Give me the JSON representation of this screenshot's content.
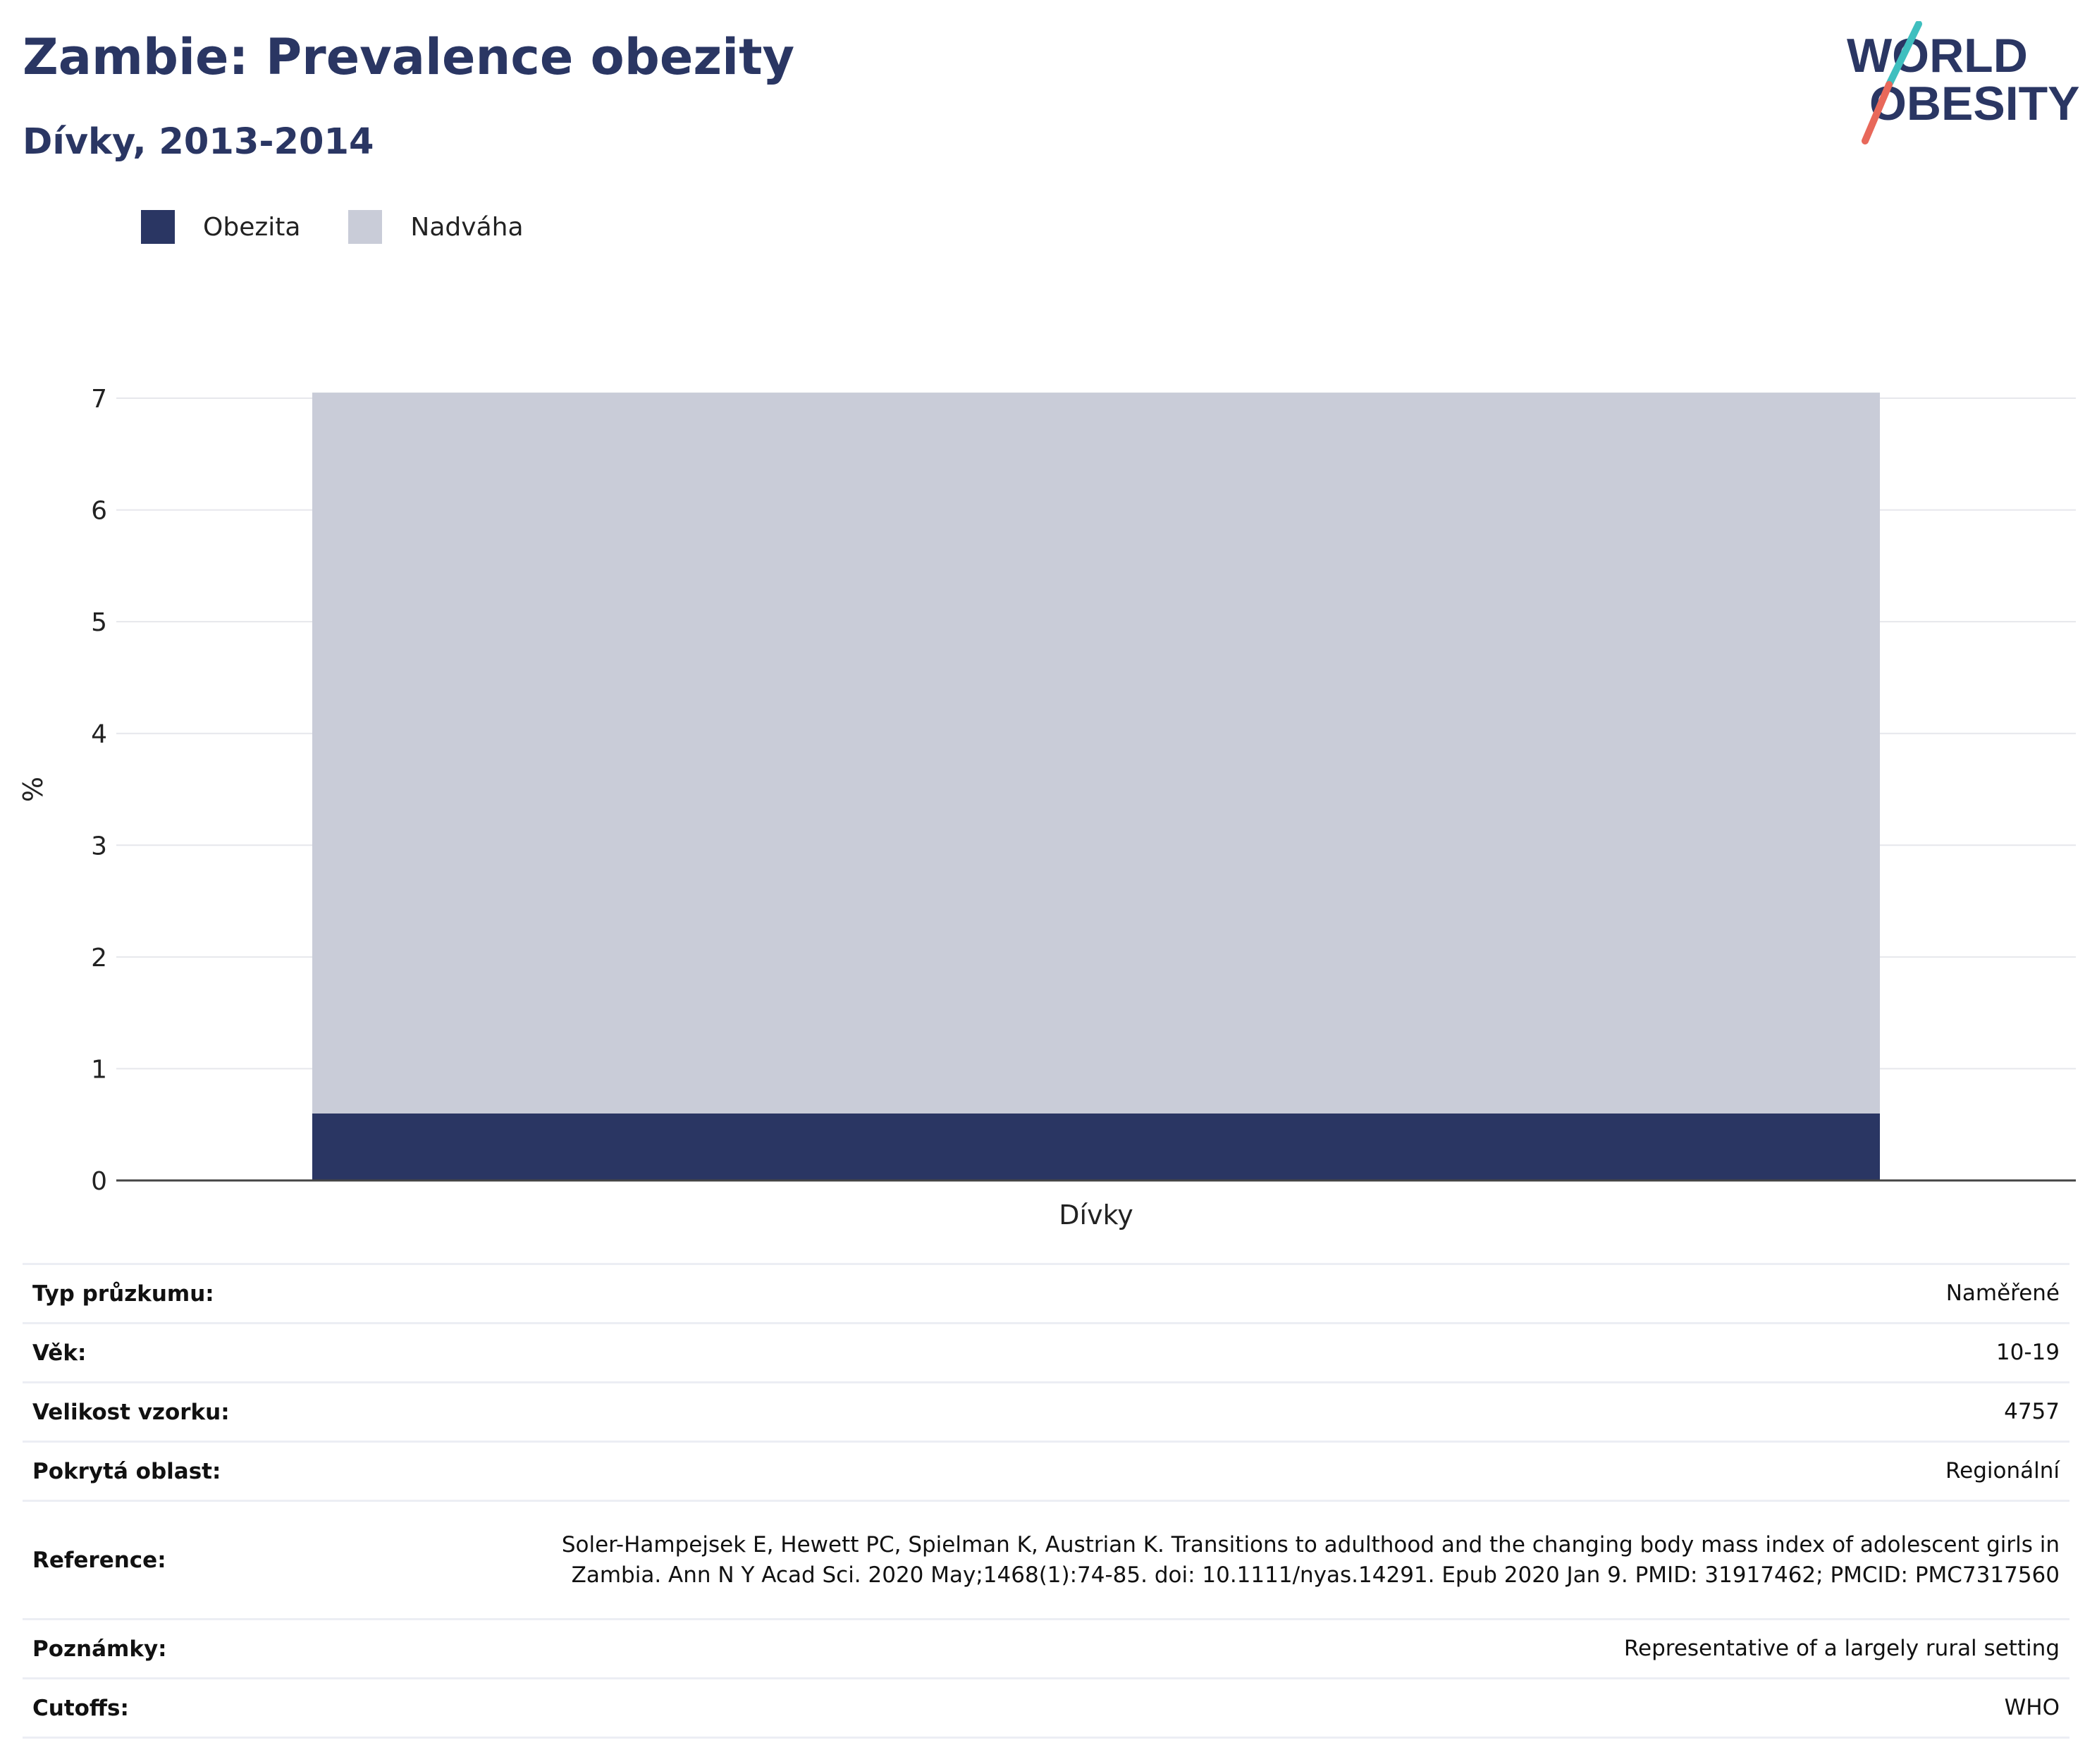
{
  "header": {
    "title": "Zambie: Prevalence obezity",
    "subtitle": "Dívky, 2013-2014"
  },
  "logo": {
    "line1": "WORLD",
    "line2": "OBESITY",
    "colors": {
      "text": "#2a3663",
      "slash_top": "#3fbfbf",
      "slash_bottom": "#e8685a"
    }
  },
  "chart_data": {
    "type": "bar",
    "stacked": true,
    "categories": [
      "Dívky"
    ],
    "series": [
      {
        "name": "Obezita",
        "values": [
          0.6
        ],
        "color": "#2a3663"
      },
      {
        "name": "Nadváha",
        "values": [
          6.45
        ],
        "color": "#c9ccd8"
      }
    ],
    "ylabel": "%",
    "xlabel": "",
    "ylim": [
      0,
      7
    ],
    "yticks": [
      "0",
      "1",
      "2",
      "3",
      "4",
      "5",
      "6",
      "7"
    ],
    "grid": true,
    "legend_position": "top-left"
  },
  "info": [
    {
      "label": "Typ průzkumu:",
      "value": "Naměřené"
    },
    {
      "label": "Věk:",
      "value": "10-19"
    },
    {
      "label": "Velikost vzorku:",
      "value": "4757"
    },
    {
      "label": "Pokrytá oblast:",
      "value": "Regionální"
    },
    {
      "label": "Reference:",
      "value": "Soler-Hampejsek E, Hewett PC, Spielman K, Austrian K. Transitions to adulthood and the changing body mass index of adolescent girls in Zambia. Ann N Y Acad Sci. 2020 May;1468(1):74-85. doi: 10.1111/nyas.14291. Epub 2020 Jan 9. PMID: 31917462; PMCID: PMC7317560"
    },
    {
      "label": "Poznámky:",
      "value": "Representative of a largely rural setting"
    },
    {
      "label": "Cutoffs:",
      "value": "WHO"
    }
  ]
}
